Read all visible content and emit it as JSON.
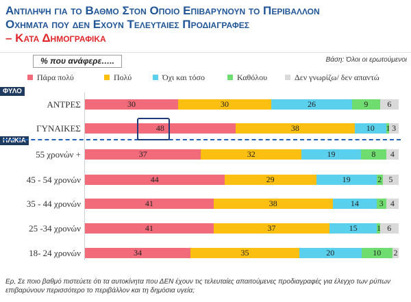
{
  "title": {
    "line1": "Αντιληψη για το Βαθμο Στον Οποιο Επιβαρυνουν το Περιβαλλον",
    "line2": "Οχηματα που δεν Εχουν Τελευταιες Προδιαγραφες",
    "line3": "– Κατα Δημογραφικα"
  },
  "mention_label": "% που ανάφερε…..",
  "base_note": "Βάση: Όλοι οι ερωτούμενοι",
  "sections": {
    "gender": "ΦΥΛΟ",
    "age": "ΗΛΙΚΙΑ"
  },
  "footnote": "Ερ, Σε ποιο βαθμό πιστεύετε ότι τα αυτοκίνητα που ΔΕΝ έχουν τις τελευταίες απαιτούμενες προδιαγραφές για έλεγχο των ρύπων επιβαρύνουν περισσότερο το περιβάλλον και τη δημόσια υγεία;",
  "chart_data": {
    "type": "bar",
    "orientation": "horizontal",
    "stacked": true,
    "categories": [
      "ΑΝΤΡΕΣ",
      "ΓΥΝΑΙΚΕΣ",
      "55 χρονών +",
      "45 - 54 χρονών",
      "35 - 44 χρονών",
      "25 -34 χρονών",
      "18- 24 χρονών"
    ],
    "series": [
      {
        "name": "Πάρα πολύ",
        "color": "#f26b7a",
        "values": [
          30,
          48,
          37,
          44,
          41,
          41,
          34
        ]
      },
      {
        "name": "Πολύ",
        "color": "#fbbf12",
        "values": [
          30,
          38,
          32,
          29,
          38,
          37,
          35
        ]
      },
      {
        "name": "Όχι και τόσο",
        "color": "#5bd0ec",
        "values": [
          26,
          10,
          19,
          19,
          14,
          15,
          20
        ]
      },
      {
        "name": "Καθόλου",
        "color": "#6fdc6f",
        "values": [
          9,
          1,
          8,
          2,
          3,
          1,
          10
        ]
      },
      {
        "name": "Δεν γνωρίζω/ δεν απαντώ",
        "color": "#d9d9d9",
        "values": [
          6,
          3,
          4,
          5,
          4,
          6,
          2
        ]
      }
    ],
    "highlighted": {
      "category": "ΓΥΝΑΙΚΕΣ",
      "series": "Πάρα πολύ"
    }
  }
}
